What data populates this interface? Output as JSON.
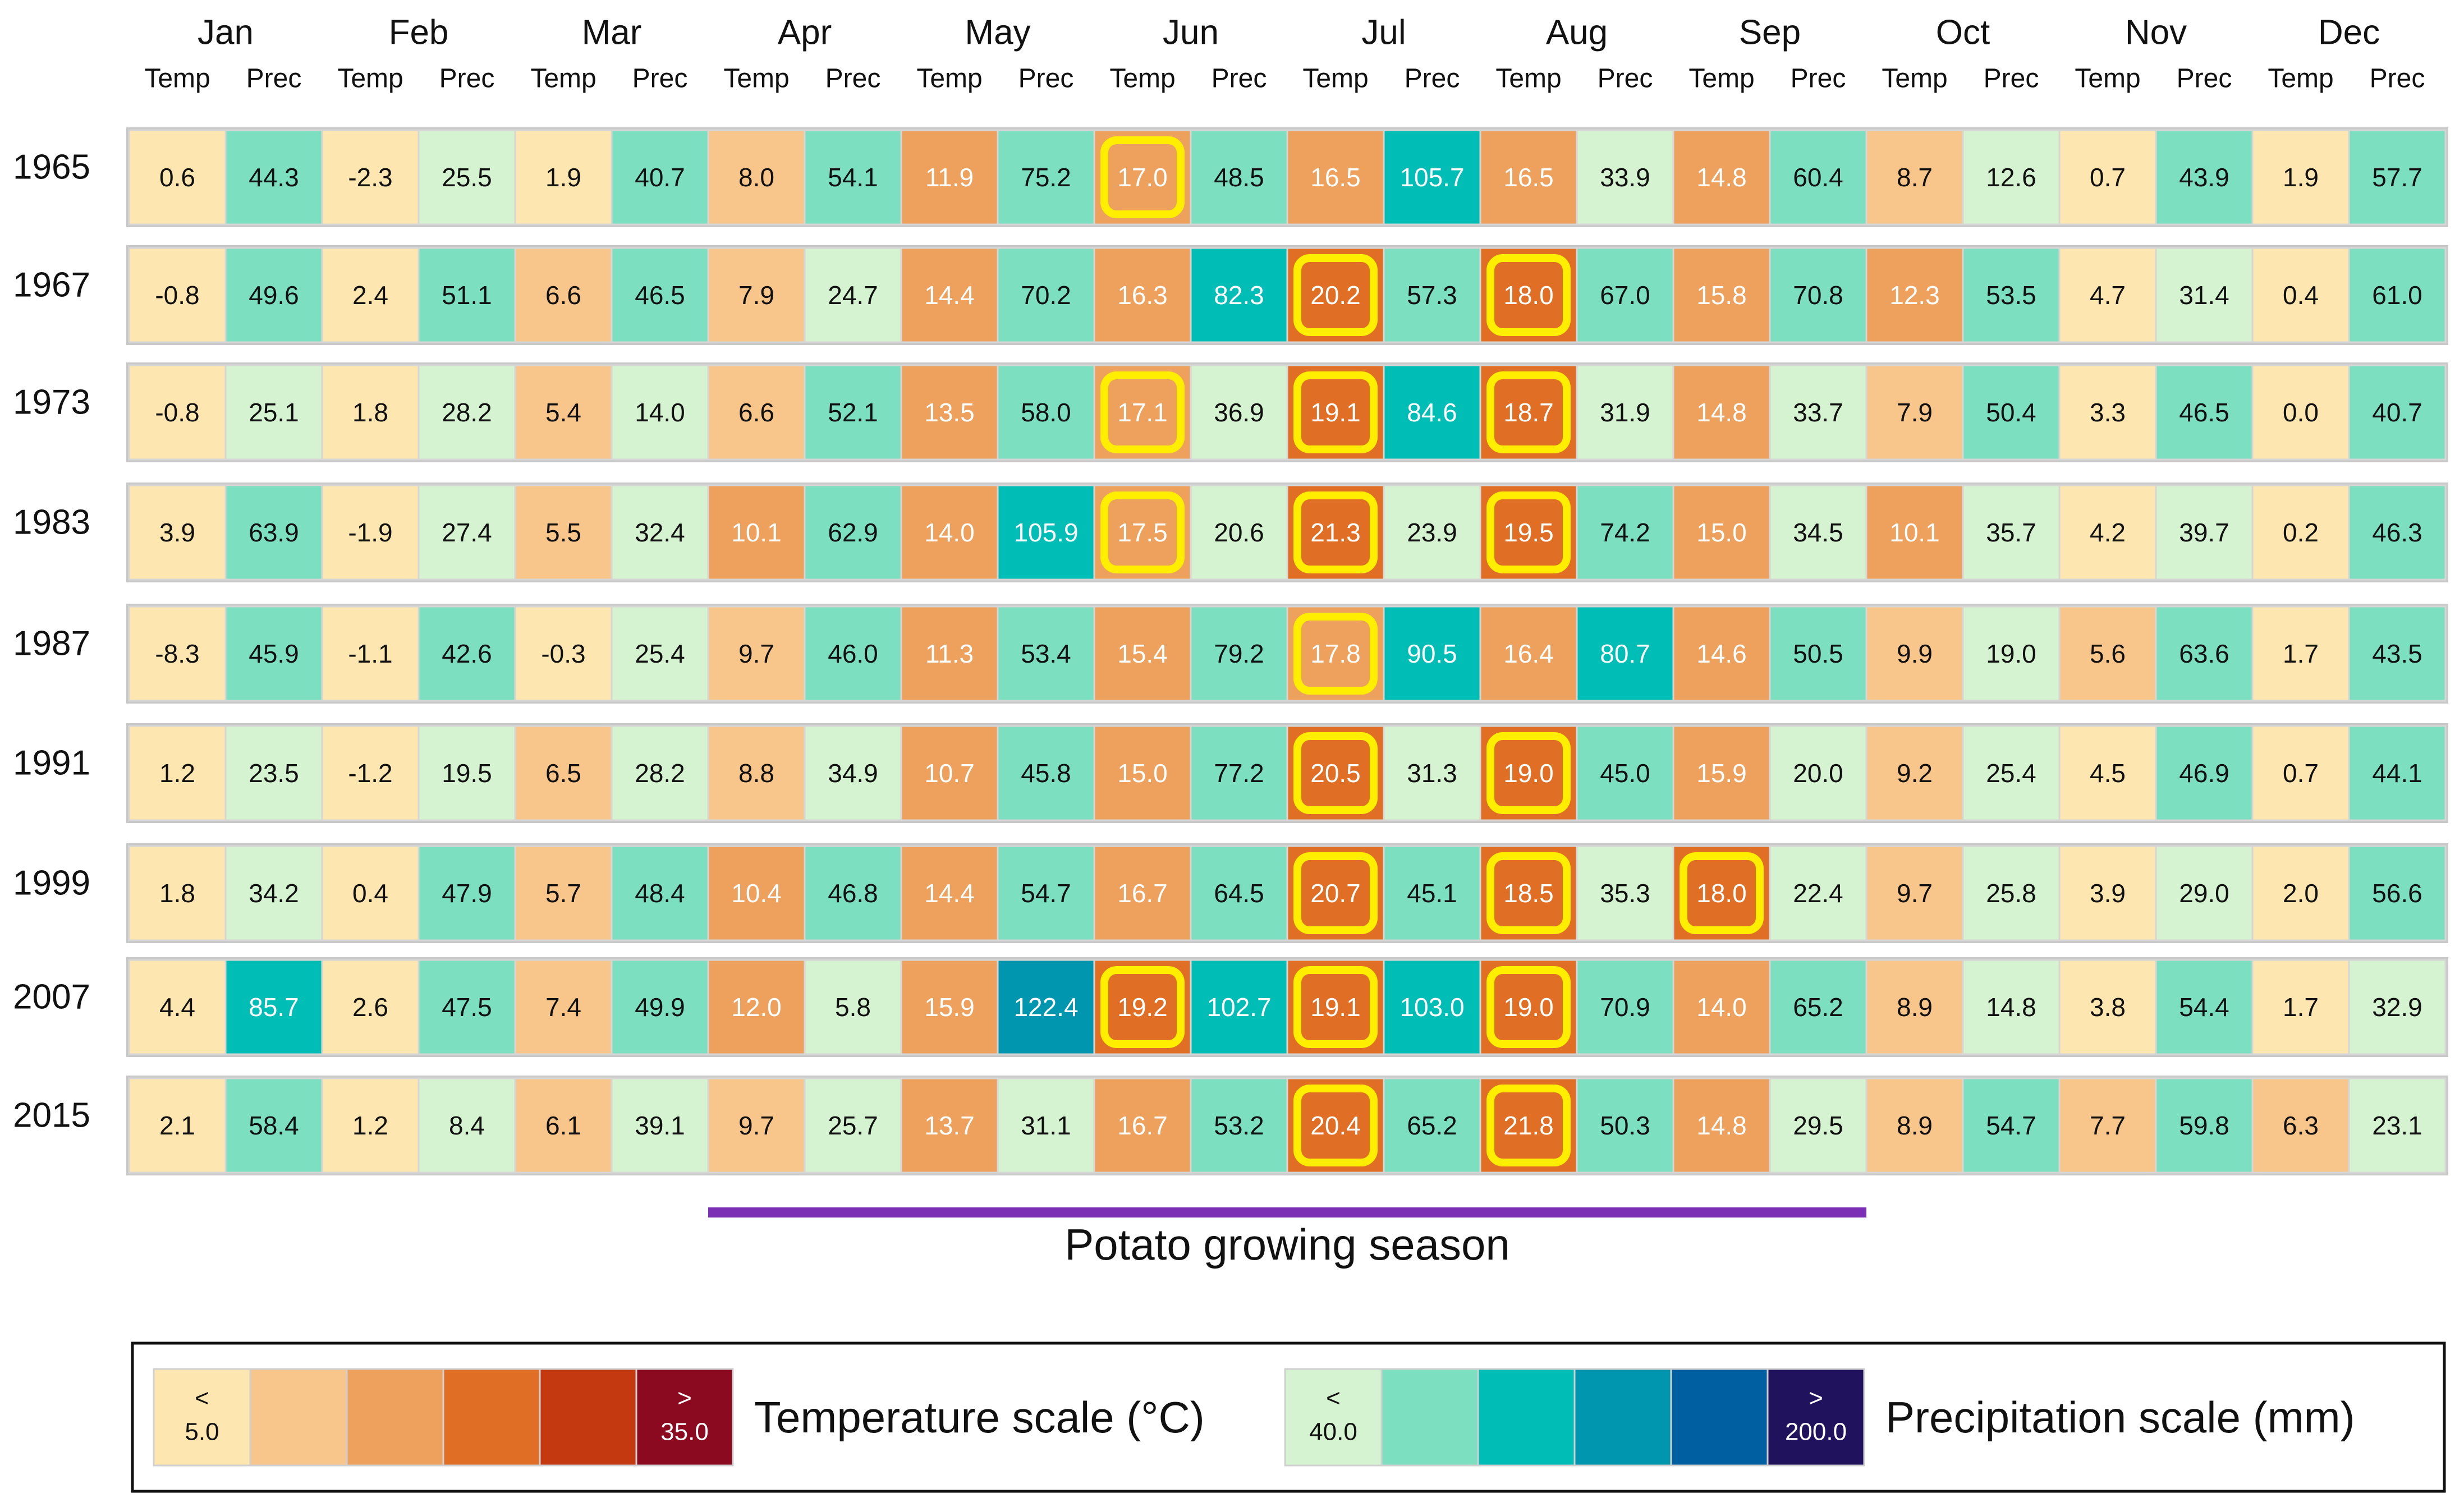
{
  "chart_data": {
    "type": "heatmap",
    "title": "",
    "months": [
      "Jan",
      "Feb",
      "Mar",
      "Apr",
      "May",
      "Jun",
      "Jul",
      "Aug",
      "Sep",
      "Oct",
      "Nov",
      "Dec"
    ],
    "subcolumns": [
      "Temp",
      "Prec"
    ],
    "years": [
      "1965",
      "1967",
      "1973",
      "1983",
      "1987",
      "1991",
      "1999",
      "2007",
      "2015"
    ],
    "temp": [
      [
        0.6,
        -2.3,
        1.9,
        8.0,
        11.9,
        17.0,
        16.5,
        16.5,
        14.8,
        8.7,
        0.7,
        1.9
      ],
      [
        -0.8,
        2.4,
        6.6,
        7.9,
        14.4,
        16.3,
        20.2,
        18.0,
        15.8,
        12.3,
        4.7,
        0.4
      ],
      [
        -0.8,
        1.8,
        5.4,
        6.6,
        13.5,
        17.1,
        19.1,
        18.7,
        14.8,
        7.9,
        3.3,
        0.0
      ],
      [
        3.9,
        -1.9,
        5.5,
        10.1,
        14.0,
        17.5,
        21.3,
        19.5,
        15.0,
        10.1,
        4.2,
        0.2
      ],
      [
        -8.3,
        -1.1,
        -0.3,
        9.7,
        11.3,
        15.4,
        17.8,
        16.4,
        14.6,
        9.9,
        5.6,
        1.7
      ],
      [
        1.2,
        -1.2,
        6.5,
        8.8,
        10.7,
        15.0,
        20.5,
        19.0,
        15.9,
        9.2,
        4.5,
        0.7
      ],
      [
        1.8,
        0.4,
        5.7,
        10.4,
        14.4,
        16.7,
        20.7,
        18.5,
        18.0,
        9.7,
        3.9,
        2.0
      ],
      [
        4.4,
        2.6,
        7.4,
        12.0,
        15.9,
        19.2,
        19.1,
        19.0,
        14.0,
        8.9,
        3.8,
        1.7
      ],
      [
        2.1,
        1.2,
        6.1,
        9.7,
        13.7,
        16.7,
        20.4,
        21.8,
        14.8,
        8.9,
        7.7,
        6.3
      ]
    ],
    "prec": [
      [
        44.3,
        25.5,
        40.7,
        54.1,
        75.2,
        48.5,
        105.7,
        33.9,
        60.4,
        12.6,
        43.9,
        57.7
      ],
      [
        49.6,
        51.1,
        46.5,
        24.7,
        70.2,
        82.3,
        57.3,
        67.0,
        70.8,
        53.5,
        31.4,
        61.0
      ],
      [
        25.1,
        28.2,
        14.0,
        52.1,
        58.0,
        36.9,
        84.6,
        31.9,
        33.7,
        50.4,
        46.5,
        40.7
      ],
      [
        63.9,
        27.4,
        32.4,
        62.9,
        105.9,
        20.6,
        23.9,
        74.2,
        34.5,
        35.7,
        39.7,
        46.3
      ],
      [
        45.9,
        42.6,
        25.4,
        46.0,
        53.4,
        79.2,
        90.5,
        80.7,
        50.5,
        19.0,
        63.6,
        43.5
      ],
      [
        23.5,
        19.5,
        28.2,
        34.9,
        45.8,
        77.2,
        31.3,
        45.0,
        20.0,
        25.4,
        46.9,
        44.1
      ],
      [
        34.2,
        47.9,
        48.4,
        46.8,
        54.7,
        64.5,
        45.1,
        35.3,
        22.4,
        25.8,
        29.0,
        56.6
      ],
      [
        85.7,
        47.5,
        49.9,
        5.8,
        122.4,
        102.7,
        103.0,
        70.9,
        65.2,
        14.8,
        54.4,
        32.9
      ],
      [
        58.4,
        8.4,
        39.1,
        25.7,
        31.1,
        53.2,
        65.2,
        50.3,
        29.5,
        54.7,
        59.8,
        23.1
      ]
    ],
    "highlighted_temp_cells": [
      [
        0,
        5
      ],
      [
        1,
        6
      ],
      [
        1,
        7
      ],
      [
        2,
        5
      ],
      [
        2,
        6
      ],
      [
        2,
        7
      ],
      [
        3,
        5
      ],
      [
        3,
        6
      ],
      [
        3,
        7
      ],
      [
        4,
        6
      ],
      [
        5,
        6
      ],
      [
        5,
        7
      ],
      [
        6,
        6
      ],
      [
        6,
        7
      ],
      [
        6,
        8
      ],
      [
        7,
        5
      ],
      [
        7,
        6
      ],
      [
        7,
        7
      ],
      [
        8,
        6
      ],
      [
        8,
        7
      ]
    ],
    "growing_season": {
      "label": "Potato growing season",
      "start_month": "Apr",
      "end_month": "Sep",
      "color": "#7b2fb5"
    },
    "temp_scale": {
      "label": "Temperature scale (°C)",
      "low_sign": "<",
      "low_value": "5.0",
      "high_sign": ">",
      "high_value": "35.0",
      "colors": [
        "#fde6b0",
        "#f8c58a",
        "#eea05d",
        "#e06e24",
        "#c4390f",
        "#8b0a1f"
      ],
      "thresholds": [
        5,
        10,
        18,
        25,
        35
      ]
    },
    "prec_scale": {
      "label": "Precipitation scale (mm)",
      "low_sign": "<",
      "low_value": "40.0",
      "high_sign": ">",
      "high_value": "200.0",
      "colors": [
        "#d5f3d0",
        "#7bdfc0",
        "#00bdb5",
        "#0096b0",
        "#005fa0",
        "#21125e"
      ],
      "thresholds": [
        40,
        80,
        120,
        160,
        200
      ]
    },
    "highlight_color": "#ffee00"
  }
}
